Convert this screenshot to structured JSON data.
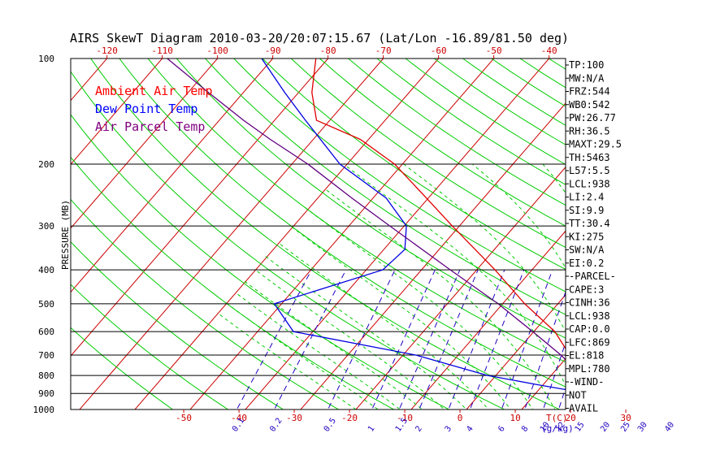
{
  "chart_data": {
    "type": "line",
    "title": "AIRS SkewT Diagram 2010-03-20/20:07:15.67 (Lat/Lon -16.89/81.50 deg)",
    "ylabel": "PRESSURE (MB)",
    "xlabel_bottom_unit": "T(C)",
    "mixing_ratio_unit": "(g/kg)",
    "pressure_ticks": [
      100,
      200,
      300,
      400,
      500,
      600,
      700,
      800,
      900,
      1000
    ],
    "ylim": [
      1050,
      100
    ],
    "y_scale": "log",
    "top_ticks": [
      -120,
      -110,
      -100,
      -90,
      -80,
      -70,
      -60,
      -50,
      -40
    ],
    "bottom_ticks": [
      -50,
      -40,
      -30,
      -20,
      -10,
      0,
      10,
      20,
      30
    ],
    "mixing_ratio_labels": [
      "0.1",
      "0.2",
      "0.5",
      "1",
      "1.5",
      "2",
      "3",
      "4",
      "6",
      "8",
      "10",
      "12",
      "15",
      "20",
      "25",
      "30",
      "40"
    ],
    "grid": true,
    "legend": {
      "placement": "top-left",
      "items": [
        {
          "label": "Ambient Air Temp",
          "color": "#ff0000"
        },
        {
          "label": "Dew Point Temp",
          "color": "#0000ff"
        },
        {
          "label": "Air Parcel Temp",
          "color": "#800080"
        }
      ]
    },
    "series": [
      {
        "name": "Ambient Air Temp",
        "color": "#e00000",
        "points": [
          [
            1000,
            29.5
          ],
          [
            950,
            23.5
          ],
          [
            925,
            22.7
          ],
          [
            900,
            22.9
          ],
          [
            850,
            20.5
          ],
          [
            800,
            17.1
          ],
          [
            700,
            10.2
          ],
          [
            600,
            3.8
          ],
          [
            500,
            -6.0
          ],
          [
            400,
            -16.7
          ],
          [
            300,
            -31.3
          ],
          [
            250,
            -40.3
          ],
          [
            200,
            -51.4
          ],
          [
            170,
            -61.5
          ],
          [
            150,
            -72.4
          ],
          [
            125,
            -77.6
          ],
          [
            100,
            -82.2
          ]
        ]
      },
      {
        "name": "Dew Point Temp",
        "color": "#0000e0",
        "points": [
          [
            1000,
            23.6
          ],
          [
            950,
            21.7
          ],
          [
            925,
            21.0
          ],
          [
            900,
            19.4
          ],
          [
            850,
            9.0
          ],
          [
            800,
            -1.5
          ],
          [
            700,
            -17.6
          ],
          [
            600,
            -43.5
          ],
          [
            500,
            -51.3
          ],
          [
            400,
            -37.0
          ],
          [
            350,
            -36.2
          ],
          [
            300,
            -39.6
          ],
          [
            250,
            -47.6
          ],
          [
            200,
            -61.3
          ],
          [
            150,
            -74.4
          ],
          [
            125,
            -82.5
          ],
          [
            100,
            -92.0
          ]
        ]
      },
      {
        "name": "Air Parcel Temp",
        "color": "#600080",
        "points": [
          [
            1000,
            28.0
          ],
          [
            950,
            22.0
          ],
          [
            925,
            22.3
          ],
          [
            900,
            20.8
          ],
          [
            850,
            18.1
          ],
          [
            800,
            15.5
          ],
          [
            700,
            8.6
          ],
          [
            600,
            -0.2
          ],
          [
            500,
            -10.8
          ],
          [
            400,
            -24.8
          ],
          [
            300,
            -42.6
          ],
          [
            250,
            -53.8
          ],
          [
            200,
            -67.1
          ],
          [
            170,
            -77.8
          ],
          [
            150,
            -85.6
          ],
          [
            125,
            -96.3
          ],
          [
            100,
            -109.1
          ]
        ]
      }
    ]
  },
  "indices": [
    "TP:100",
    "MW:N/A",
    "FRZ:544",
    "WB0:542",
    "PW:26.77",
    "RH:36.5",
    "MAXT:29.5",
    "TH:5463",
    "L57:5.5",
    "LCL:938",
    "LI:2.4",
    "SI:9.9",
    "TT:30.4",
    "KI:275",
    "SW:N/A",
    "EI:0.2",
    "-PARCEL-",
    "CAPE:3",
    "CINH:36",
    "LCL:938",
    "CAP:0.0",
    "LFC:869",
    "EL:818",
    "MPL:780",
    "-WIND-",
    "NOT",
    "AVAIL"
  ],
  "colors": {
    "isotherm": "#cc0000",
    "dry_adiabat": "#00cc00",
    "moist_adiabat": "#00cc00",
    "mixing_ratio": "#2000c0",
    "axis": "#000000",
    "isobar": "#000000",
    "tick_label": "#cc0000"
  }
}
